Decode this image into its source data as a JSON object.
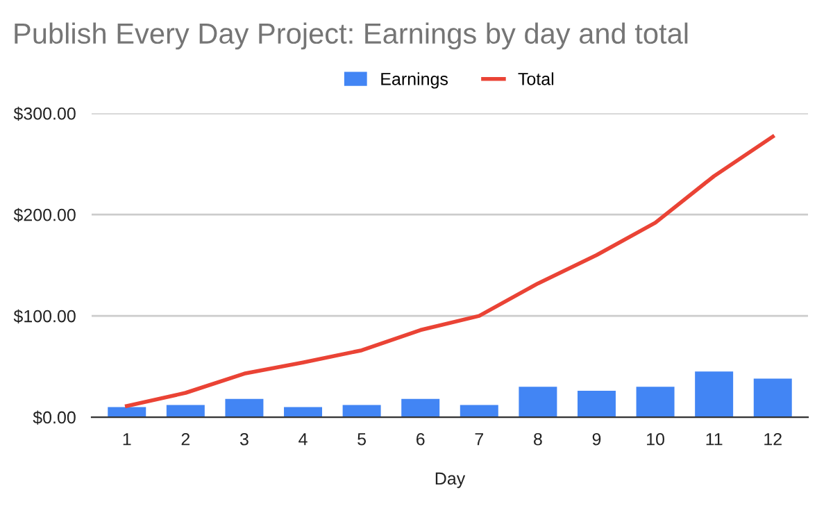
{
  "chart_data": {
    "type": "bar",
    "title": "Publish Every Day Project: Earnings by day and total",
    "xlabel": "Day",
    "categories": [
      "1",
      "2",
      "3",
      "4",
      "5",
      "6",
      "7",
      "8",
      "9",
      "10",
      "11",
      "12"
    ],
    "series": [
      {
        "name": "Earnings",
        "color": "#4285f4",
        "values": [
          10,
          12,
          18,
          10,
          12,
          18,
          12,
          30,
          26,
          30,
          45,
          38
        ]
      },
      {
        "name": "Total",
        "type": "line",
        "color": "#ea4335",
        "values": [
          11,
          24,
          43,
          54,
          66,
          86,
          100,
          132,
          160,
          192,
          238,
          277
        ]
      }
    ],
    "ylim": [
      0,
      300
    ],
    "yticks": [
      {
        "value": 0,
        "label": "$0.00"
      },
      {
        "value": 100,
        "label": "$100.00"
      },
      {
        "value": 200,
        "label": "$200.00"
      },
      {
        "value": 300,
        "label": "$300.00"
      }
    ],
    "grid": "y",
    "legend": "top",
    "marker": "none"
  }
}
